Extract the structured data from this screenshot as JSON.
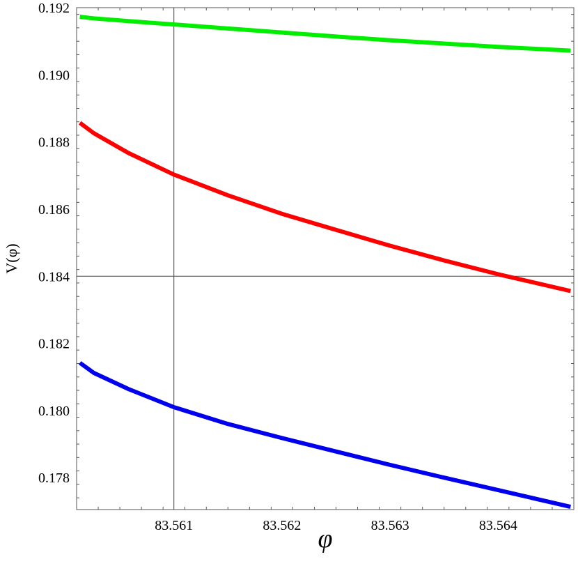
{
  "chart_data": {
    "type": "line",
    "xlabel": "φ",
    "ylabel": "V(φ)",
    "xlim": [
      83.5601,
      83.5647
    ],
    "ylim": [
      0.17705,
      0.192
    ],
    "crosshair": {
      "x": 83.561,
      "y": 0.184
    },
    "x_ticks": [
      83.561,
      83.562,
      83.563,
      83.564
    ],
    "x_tick_labels": [
      "83.561",
      "83.562",
      "83.563",
      "83.564"
    ],
    "y_ticks": [
      0.178,
      0.18,
      0.182,
      0.184,
      0.186,
      0.188,
      0.19,
      0.192
    ],
    "y_tick_labels": [
      "0.178",
      "0.180",
      "0.182",
      "0.184",
      "0.186",
      "0.188",
      "0.190",
      "0.192"
    ],
    "grid": false,
    "series": [
      {
        "color": "#00ee00",
        "x": [
          83.56013,
          83.56026,
          83.56058,
          83.561,
          83.5615,
          83.562,
          83.5625,
          83.563,
          83.5635,
          83.564,
          83.56467
        ],
        "y": [
          0.19173,
          0.19168,
          0.1916,
          0.1915,
          0.19138,
          0.19126,
          0.19114,
          0.19103,
          0.19093,
          0.19083,
          0.19072
        ]
      },
      {
        "color": "#ff0000",
        "x": [
          83.56013,
          83.56026,
          83.56058,
          83.561,
          83.5615,
          83.562,
          83.5625,
          83.563,
          83.5635,
          83.564,
          83.56467
        ],
        "y": [
          0.18857,
          0.18826,
          0.18767,
          0.18703,
          0.18641,
          0.18586,
          0.18538,
          0.18491,
          0.18447,
          0.18406,
          0.18356
        ]
      },
      {
        "color": "#0000ee",
        "x": [
          83.56013,
          83.56026,
          83.56058,
          83.561,
          83.5615,
          83.562,
          83.5625,
          83.563,
          83.5635,
          83.564,
          83.56467
        ],
        "y": [
          0.18142,
          0.18112,
          0.18064,
          0.1801,
          0.1796,
          0.17918,
          0.17878,
          0.17838,
          0.178,
          0.17763,
          0.17713
        ]
      }
    ]
  }
}
